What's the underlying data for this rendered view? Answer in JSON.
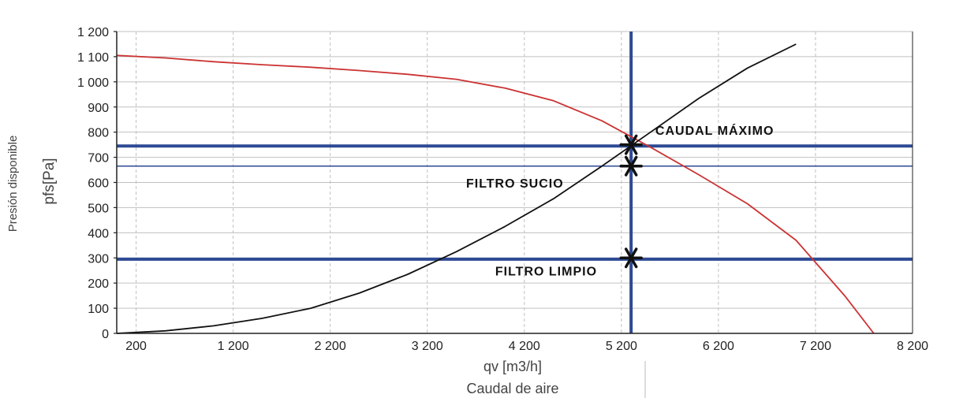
{
  "chart_data": {
    "type": "line",
    "xlabel": "qv [m3/h]",
    "xlabel_secondary": "Caudal de aire",
    "ylabel": "pfs[Pa]",
    "ylabel_secondary": "Presión disponible",
    "xlim": [
      0,
      8200
    ],
    "ylim": [
      0,
      1200
    ],
    "x_ticks": [
      200,
      1200,
      2200,
      3200,
      4200,
      5200,
      6200,
      7200,
      8200
    ],
    "x_tick_labels": [
      "200",
      "1 200",
      "2 200",
      "3 200",
      "4 200",
      "5 200",
      "6 200",
      "7 200",
      "8 200"
    ],
    "y_ticks": [
      0,
      100,
      200,
      300,
      400,
      500,
      600,
      700,
      800,
      900,
      1000,
      1100,
      1200
    ],
    "y_tick_labels": [
      "0",
      "100",
      "200",
      "300",
      "400",
      "500",
      "600",
      "700",
      "800",
      "900",
      "1 000",
      "1 100",
      "1 200"
    ],
    "grid": true,
    "series": [
      {
        "color": "#cc3333",
        "x": [
          0,
          500,
          1000,
          1500,
          2000,
          2500,
          3000,
          3500,
          4000,
          4500,
          5000,
          5500,
          6000,
          6500,
          7000,
          7500,
          7800
        ],
        "y": [
          1105,
          1095,
          1080,
          1068,
          1058,
          1045,
          1030,
          1010,
          975,
          925,
          845,
          740,
          630,
          515,
          370,
          150,
          0
        ]
      },
      {
        "color": "#111111",
        "x": [
          0,
          500,
          1000,
          1500,
          2000,
          2500,
          3000,
          3500,
          4000,
          4500,
          5000,
          5500,
          6000,
          6500,
          7000
        ],
        "y": [
          0,
          10,
          30,
          60,
          100,
          160,
          235,
          325,
          425,
          535,
          665,
          800,
          935,
          1055,
          1150
        ]
      }
    ],
    "reference_lines": [
      {
        "orientation": "horizontal",
        "value": 745,
        "color": "#2d4a94",
        "weight": "thick"
      },
      {
        "orientation": "horizontal",
        "value": 665,
        "color": "#2d4a94",
        "weight": "thin"
      },
      {
        "orientation": "horizontal",
        "value": 295,
        "color": "#2d4a94",
        "weight": "thick"
      },
      {
        "orientation": "vertical",
        "value": 5300,
        "color": "#2d4a94",
        "weight": "thick"
      }
    ],
    "markers": [
      {
        "x": 5300,
        "y": 750
      },
      {
        "x": 5300,
        "y": 665
      },
      {
        "x": 5300,
        "y": 300
      }
    ],
    "annotations": [
      {
        "text": "CAUDAL MÁXIMO",
        "x": 5550,
        "y": 790
      },
      {
        "text": "FILTRO SUCIO",
        "x": 3600,
        "y": 580
      },
      {
        "text": "FILTRO LIMPIO",
        "x": 3900,
        "y": 230
      }
    ],
    "colors": {
      "axis": "#222222",
      "grid": "#c0c0c0",
      "reference": "#2d4a94"
    }
  }
}
